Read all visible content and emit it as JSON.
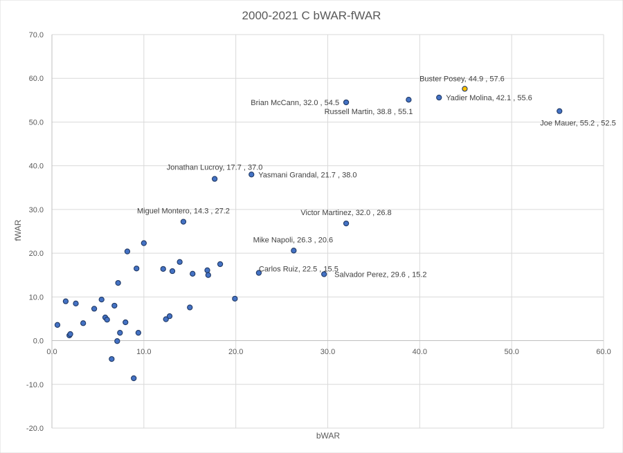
{
  "chart_data": {
    "type": "scatter",
    "title": "2000-2021 C bWAR-fWAR",
    "xlabel": "bWAR",
    "ylabel": "fWAR",
    "xlim": [
      0,
      60
    ],
    "ylim": [
      -20,
      70
    ],
    "x_ticks": [
      "0.0",
      "10.0",
      "20.0",
      "30.0",
      "40.0",
      "50.0",
      "60.0"
    ],
    "y_ticks": [
      "70.0",
      "60.0",
      "50.0",
      "40.0",
      "30.0",
      "20.0",
      "10.0",
      "0.0",
      "-10.0",
      "-20.0"
    ],
    "grid": true,
    "colors": {
      "point": "#4472c4",
      "highlight": "#ffc000",
      "outline": "#1f3864",
      "grid": "#d9d9d9",
      "negative_tick": "#c00000"
    },
    "labeled_points": [
      {
        "label": "Buster Posey, 44.9 , 57.6",
        "x": 44.9,
        "y": 57.6,
        "highlight": true
      },
      {
        "label": "Brian McCann, 32.0 , 54.5",
        "x": 32.0,
        "y": 54.5
      },
      {
        "label": "Russell Martin, 38.8 , 55.1",
        "x": 38.8,
        "y": 55.1
      },
      {
        "label": "Yadier Molina, 42.1 , 55.6",
        "x": 42.1,
        "y": 55.6
      },
      {
        "label": "Joe Mauer, 55.2 , 52.5",
        "x": 55.2,
        "y": 52.5
      },
      {
        "label": "Jonathan Lucroy, 17.7 , 37.0",
        "x": 17.7,
        "y": 37.0
      },
      {
        "label": "Yasmani Grandal, 21.7 , 38.0",
        "x": 21.7,
        "y": 38.0
      },
      {
        "label": "Miguel Montero, 14.3 , 27.2",
        "x": 14.3,
        "y": 27.2
      },
      {
        "label": "Victor Martinez, 32.0 , 26.8",
        "x": 32.0,
        "y": 26.8
      },
      {
        "label": "Mike Napoli, 26.3 , 20.6",
        "x": 26.3,
        "y": 20.6
      },
      {
        "label": "Carlos Ruiz, 22.5 , 15.5",
        "x": 22.5,
        "y": 15.5
      },
      {
        "label": "Salvador Perez, 29.6 , 15.2",
        "x": 29.6,
        "y": 15.2
      }
    ],
    "points": [
      [
        0.6,
        3.6
      ],
      [
        1.5,
        9.0
      ],
      [
        1.9,
        1.2
      ],
      [
        2.0,
        1.5
      ],
      [
        2.6,
        8.5
      ],
      [
        3.4,
        4.0
      ],
      [
        4.6,
        7.3
      ],
      [
        5.4,
        9.4
      ],
      [
        5.8,
        5.3
      ],
      [
        6.0,
        4.8
      ],
      [
        6.5,
        -4.2
      ],
      [
        6.8,
        8.0
      ],
      [
        7.1,
        -0.1
      ],
      [
        7.2,
        13.2
      ],
      [
        7.4,
        1.8
      ],
      [
        8.0,
        4.2
      ],
      [
        8.2,
        20.4
      ],
      [
        8.9,
        -8.6
      ],
      [
        9.2,
        16.5
      ],
      [
        9.4,
        1.8
      ],
      [
        10.0,
        22.3
      ],
      [
        12.1,
        16.4
      ],
      [
        12.4,
        4.9
      ],
      [
        12.8,
        5.6
      ],
      [
        13.1,
        15.9
      ],
      [
        13.9,
        18.0
      ],
      [
        15.0,
        7.6
      ],
      [
        15.3,
        15.3
      ],
      [
        16.9,
        16.1
      ],
      [
        17.0,
        15.0
      ],
      [
        18.3,
        17.5
      ],
      [
        19.9,
        9.6
      ]
    ]
  }
}
